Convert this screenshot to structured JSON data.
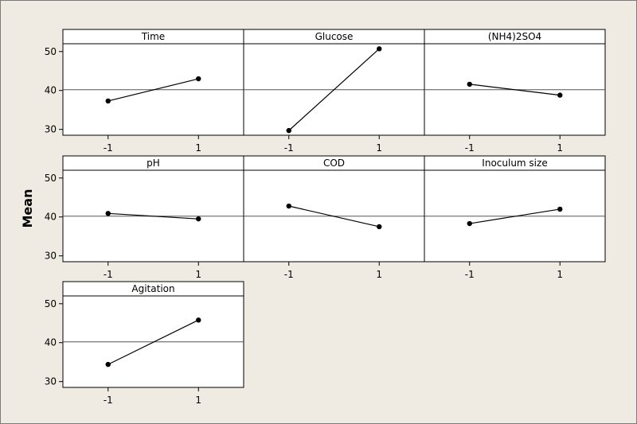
{
  "chart_data": {
    "type": "line",
    "ylabel": "Mean",
    "ylim": [
      28.5,
      52
    ],
    "y_ticks": [
      30,
      40,
      50
    ],
    "x_levels": [
      "-1",
      "1"
    ],
    "reference_line": 40.2,
    "panels": [
      {
        "title": "Time",
        "values": [
          37.3,
          43.0
        ]
      },
      {
        "title": "Glucose",
        "values": [
          29.7,
          50.7
        ]
      },
      {
        "title": "(NH4)2SO4",
        "values": [
          41.6,
          38.8
        ]
      },
      {
        "title": "pH",
        "values": [
          40.9,
          39.5
        ]
      },
      {
        "title": "COD",
        "values": [
          42.8,
          37.5
        ]
      },
      {
        "title": "Inoculum size",
        "values": [
          38.3,
          42.0
        ]
      },
      {
        "title": "Agitation",
        "values": [
          34.4,
          45.8
        ]
      }
    ]
  }
}
